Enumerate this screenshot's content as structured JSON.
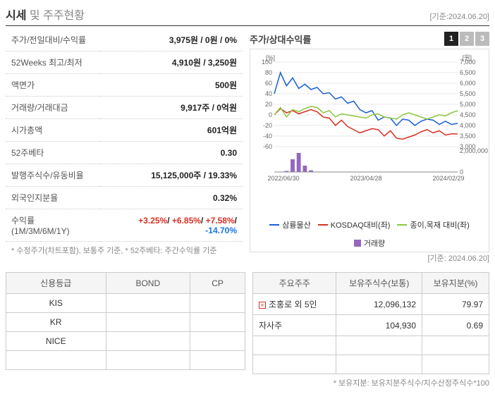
{
  "header": {
    "title_main": "시세",
    "title_conj": " 및 ",
    "title_sub": "주주현황",
    "date_label": "[기준:2024.06.20]"
  },
  "info_rows": [
    {
      "label": "주가/전일대비/수익률",
      "value": "3,975원 / 0원 / 0%"
    },
    {
      "label": "52Weeks 최고/최저",
      "value": "4,910원 / 3,250원"
    },
    {
      "label": "액면가",
      "value": "500원"
    },
    {
      "label": "거래량/거래대금",
      "value": "9,917주 / 0억원"
    },
    {
      "label": "시가총액",
      "value": "601억원"
    },
    {
      "label": "52주베타",
      "value": "0.30"
    },
    {
      "label": "발행주식수/유동비율",
      "value": "15,125,000주 / 19.33%"
    },
    {
      "label": "외국인지분율",
      "value": "0.32%"
    }
  ],
  "returns_row": {
    "label": "수익률 (1M/3M/6M/1Y)",
    "r1": "+3.25%",
    "r2": "+6.85%",
    "r3": "+7.58%",
    "r4": "-14.70%",
    "slash": "/ "
  },
  "info_note": "* 수정주가(차트포함), 보통주 기준, * 52주베타: 주간수익률 기준",
  "chart": {
    "title": "주가/상대수익률",
    "tabs": [
      "1",
      "2",
      "3"
    ],
    "y_left_label": "[%]",
    "y_right_label": "[원]",
    "y_left_ticks": [
      100,
      80,
      60,
      40,
      20,
      0,
      -20,
      -40,
      -60
    ],
    "y_right_ticks": [
      "7,000",
      "6,500",
      "6,000",
      "5,500",
      "5,000",
      "4,500",
      "4,000",
      "3,500",
      "3,000"
    ],
    "vol_ticks": [
      "2,000,000",
      "0"
    ],
    "x_ticks": [
      "2022/06/30",
      "2023/04/28",
      "2024/02/29"
    ],
    "series": {
      "blue": {
        "name": "삼륭물산",
        "color": "#1a5fd6",
        "points": [
          40,
          80,
          55,
          70,
          50,
          58,
          48,
          52,
          40,
          42,
          30,
          34,
          22,
          26,
          10,
          4,
          8,
          -10,
          -4,
          -6,
          -20,
          -8,
          -10,
          -20,
          -12,
          -8,
          -10,
          -18,
          -12,
          -18,
          -16
        ]
      },
      "red": {
        "name": "KOSDAQ대비(좌)",
        "color": "#d93025",
        "points": [
          0,
          12,
          4,
          8,
          2,
          6,
          10,
          6,
          -4,
          -6,
          -20,
          -10,
          -22,
          -28,
          -34,
          -30,
          -26,
          -28,
          -40,
          -30,
          -44,
          -46,
          -42,
          -38,
          -32,
          -28,
          -34,
          -30,
          -38,
          -36,
          -36
        ]
      },
      "green": {
        "name": "종이,목재 대비(좌)",
        "color": "#8cc63f",
        "points": [
          0,
          14,
          -4,
          10,
          6,
          12,
          16,
          14,
          4,
          8,
          -4,
          2,
          0,
          -2,
          -4,
          -6,
          0,
          2,
          -4,
          -6,
          -8,
          0,
          4,
          0,
          -4,
          -8,
          -4,
          0,
          -2,
          4,
          8
        ]
      },
      "volume": {
        "name": "거래량",
        "color": "#9467bd",
        "bars": [
          0,
          0,
          0.05,
          0.6,
          0.9,
          0.3,
          0.08,
          0,
          0,
          0,
          0,
          0,
          0,
          0,
          0,
          0,
          0,
          0,
          0,
          0,
          0,
          0,
          0,
          0,
          0,
          0,
          0,
          0,
          0,
          0,
          0
        ]
      }
    },
    "background": "#ffffff",
    "grid_color": "#e8e8e8",
    "axis_color": "#888"
  },
  "chart_date": "[기준: 2024.06.20]",
  "rating_table": {
    "headers": [
      "신용등급",
      "BOND",
      "CP"
    ],
    "rows": [
      [
        "KIS",
        "",
        ""
      ],
      [
        "KR",
        "",
        ""
      ],
      [
        "NICE",
        "",
        ""
      ]
    ]
  },
  "shareholder_table": {
    "headers": [
      "주요주주",
      "보유주식수(보통)",
      "보유지분(%)"
    ],
    "rows": [
      {
        "name": "조홍로 외 5인",
        "shares": "12,096,132",
        "pct": "79.97",
        "expandable": true
      },
      {
        "name": "자사주",
        "shares": "104,930",
        "pct": "0.69",
        "expandable": false
      }
    ]
  },
  "shareholder_note": "* 보유지분: 보유지분주식수/지수산정주식수*100"
}
